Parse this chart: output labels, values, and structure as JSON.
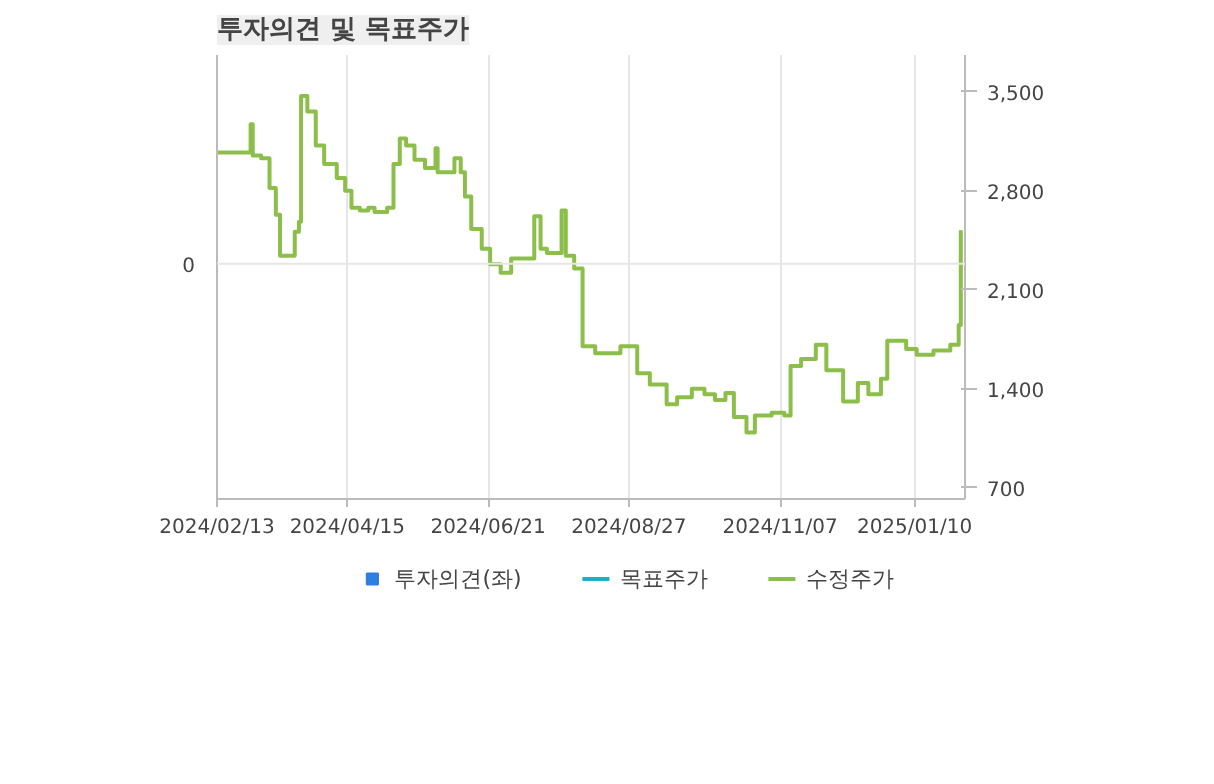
{
  "chart_data": {
    "type": "line",
    "title": "투자의견 및 목표주가",
    "annotations": [
      "0"
    ],
    "xlim": [
      "2024-02-13",
      "2025-02-03"
    ],
    "xticks": [
      {
        "value": "2024-02-13",
        "label": "2024/02/13"
      },
      {
        "value": "2024-04-15",
        "label": "2024/04/15"
      },
      {
        "value": "2024-06-21",
        "label": "2024/06/21"
      },
      {
        "value": "2024-08-27",
        "label": "2024/08/27"
      },
      {
        "value": "2024-11-07",
        "label": "2024/11/07"
      },
      {
        "value": "2025-01-10",
        "label": "2025/01/10"
      }
    ],
    "y2lim": [
      620,
      3760
    ],
    "y2ticks": [
      {
        "value": 700,
        "label": "700"
      },
      {
        "value": 1400,
        "label": "1,400"
      },
      {
        "value": 2100,
        "label": "2,100"
      },
      {
        "value": 2800,
        "label": "2,800"
      },
      {
        "value": 3500,
        "label": "3,500"
      }
    ],
    "grid": "x",
    "legend": "bottom",
    "series": [
      {
        "name": "투자의견(좌)",
        "type": "bar",
        "color": "#2f7fe0"
      },
      {
        "name": "목표주가",
        "color": "#1ab0c8"
      },
      {
        "name": "수정주가",
        "type": "step",
        "color": "#8cbf4a",
        "axis": "y2",
        "x": [
          "2024-02-13",
          "2024-02-28",
          "2024-02-29",
          "2024-03-01",
          "2024-03-05",
          "2024-03-09",
          "2024-03-12",
          "2024-03-14",
          "2024-03-18",
          "2024-03-21",
          "2024-03-23",
          "2024-03-24",
          "2024-03-27",
          "2024-03-31",
          "2024-04-04",
          "2024-04-10",
          "2024-04-14",
          "2024-04-17",
          "2024-04-21",
          "2024-04-25",
          "2024-04-28",
          "2024-05-04",
          "2024-05-07",
          "2024-05-10",
          "2024-05-13",
          "2024-05-17",
          "2024-05-22",
          "2024-05-27",
          "2024-05-28",
          "2024-06-02",
          "2024-06-05",
          "2024-06-08",
          "2024-06-10",
          "2024-06-13",
          "2024-06-18",
          "2024-06-22",
          "2024-06-27",
          "2024-07-02",
          "2024-07-09",
          "2024-07-13",
          "2024-07-16",
          "2024-07-19",
          "2024-07-26",
          "2024-07-28",
          "2024-08-01",
          "2024-08-05",
          "2024-08-11",
          "2024-08-23",
          "2024-08-31",
          "2024-09-06",
          "2024-09-14",
          "2024-09-19",
          "2024-09-26",
          "2024-10-02",
          "2024-10-07",
          "2024-10-12",
          "2024-10-16",
          "2024-10-22",
          "2024-10-26",
          "2024-11-03",
          "2024-11-09",
          "2024-11-12",
          "2024-11-17",
          "2024-11-24",
          "2024-11-29",
          "2024-12-07",
          "2024-12-14",
          "2024-12-19",
          "2024-12-25",
          "2024-12-28",
          "2025-01-06",
          "2025-01-11",
          "2025-01-19",
          "2025-01-27",
          "2025-01-31",
          "2025-02-01"
        ],
        "values": [
          3070,
          3070,
          3270,
          3050,
          3030,
          2820,
          2630,
          2340,
          2340,
          2510,
          2580,
          3470,
          3360,
          3120,
          2990,
          2890,
          2800,
          2680,
          2660,
          2680,
          2650,
          2680,
          2990,
          3170,
          3120,
          3020,
          2960,
          3100,
          2930,
          2930,
          3030,
          2930,
          2760,
          2530,
          2390,
          2280,
          2220,
          2320,
          2320,
          2620,
          2390,
          2360,
          2660,
          2340,
          2250,
          1700,
          1650,
          1700,
          1510,
          1430,
          1290,
          1340,
          1400,
          1360,
          1320,
          1370,
          1200,
          1090,
          1210,
          1230,
          1210,
          1560,
          1610,
          1710,
          1530,
          1310,
          1440,
          1360,
          1470,
          1740,
          1680,
          1640,
          1670,
          1710,
          1850,
          2520
        ]
      }
    ]
  }
}
